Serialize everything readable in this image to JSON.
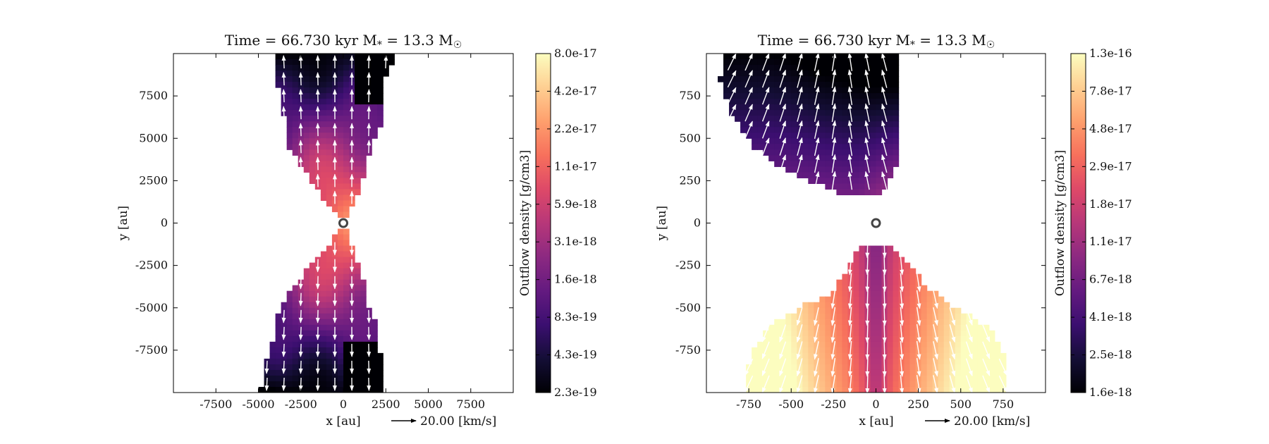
{
  "colors": {
    "colormap": [
      "#000004",
      "#140e36",
      "#3b0f70",
      "#641a80",
      "#8c2981",
      "#b73779",
      "#de4968",
      "#f7705c",
      "#fe9f6d",
      "#fecf92",
      "#fcfdbf"
    ],
    "arrow": "#ffffff",
    "star_marker": "#444444",
    "frame": "#000000"
  },
  "chart_data": [
    {
      "type": "heatmap",
      "title": "Time = 66.730 kyr    M$_*$ = 13.3 M$_\\odot$",
      "title_parts": {
        "time": "Time = 66.730 kyr",
        "mass_prefix": "M",
        "mass_sub": "*",
        "mass_eq": " = 13.3 M",
        "mass_unit_sub": "☉"
      },
      "xlabel": "x [au]",
      "ylabel": "y [au]",
      "xlim": [
        -10000,
        10000
      ],
      "ylim": [
        -10000,
        10000
      ],
      "xticks": [
        -7500,
        -5000,
        -2500,
        0,
        2500,
        5000,
        7500
      ],
      "yticks": [
        -7500,
        -5000,
        -2500,
        0,
        2500,
        5000,
        7500
      ],
      "quiver_key": {
        "label": "20.00 [km/s]"
      },
      "colorbar": {
        "label": "Outflow density [g/cm3]",
        "scale": "log",
        "ticks": [
          "2.3e-19",
          "4.3e-19",
          "8.3e-19",
          "1.6e-18",
          "3.1e-18",
          "5.9e-18",
          "1.1e-17",
          "2.2e-17",
          "4.2e-17",
          "8.0e-17"
        ]
      },
      "star": {
        "x": 0,
        "y": 0
      },
      "lobes": [
        {
          "name": "",
          "outline": [
            [
              0,
              0
            ],
            [
              -800,
              1000
            ],
            [
              -2000,
              2600
            ],
            [
              -3300,
              4700
            ],
            [
              -3400,
              5600
            ],
            [
              -3600,
              7400
            ],
            [
              -4000,
              8300
            ],
            [
              -3900,
              10000
            ],
            [
              3200,
              10000
            ],
            [
              2500,
              8600
            ],
            [
              2500,
              7100
            ],
            [
              2200,
              5800
            ],
            [
              1600,
              4300
            ],
            [
              1300,
              3000
            ],
            [
              600,
              1200
            ]
          ]
        },
        {
          "name": "",
          "outline": [
            [
              0,
              0
            ],
            [
              -800,
              -1200
            ],
            [
              -1700,
              -2300
            ],
            [
              -3100,
              -3900
            ],
            [
              -4000,
              -5600
            ],
            [
              -4200,
              -7100
            ],
            [
              -4700,
              -8800
            ],
            [
              -4900,
              -10000
            ],
            [
              2200,
              -10000
            ],
            [
              2200,
              -8000
            ],
            [
              2000,
              -6200
            ],
            [
              1500,
              -4900
            ],
            [
              1100,
              -3200
            ],
            [
              600,
              -1400
            ]
          ]
        }
      ]
    },
    {
      "type": "heatmap",
      "title": "Time = 66.730 kyr    M$_*$ = 13.3 M$_\\odot$",
      "title_parts": {
        "time": "Time = 66.730 kyr",
        "mass_prefix": "M",
        "mass_sub": "*",
        "mass_eq": " = 13.3 M",
        "mass_unit_sub": "☉"
      },
      "xlabel": "x [au]",
      "ylabel": "y [au]",
      "xlim": [
        -1000,
        1000
      ],
      "ylim": [
        -1000,
        1000
      ],
      "xticks": [
        -750,
        -500,
        -250,
        0,
        250,
        500,
        750
      ],
      "yticks": [
        -750,
        -500,
        -250,
        0,
        250,
        500,
        750
      ],
      "quiver_key": {
        "label": "20.00 [km/s]"
      },
      "colorbar": {
        "label": "Outflow density [g/cm3]",
        "scale": "log",
        "ticks": [
          "1.6e-18",
          "2.5e-18",
          "4.1e-18",
          "6.7e-18",
          "1.1e-17",
          "1.8e-17",
          "2.9e-17",
          "4.8e-17",
          "7.8e-17",
          "1.3e-16"
        ]
      },
      "star": {
        "x": 0,
        "y": 0
      },
      "lobes": [
        {
          "name": "",
          "outline": [
            [
              -900,
              1000
            ],
            [
              -920,
              850
            ],
            [
              -850,
              650
            ],
            [
              -720,
              450
            ],
            [
              -550,
              320
            ],
            [
              -400,
              250
            ],
            [
              -250,
              190
            ],
            [
              -100,
              160
            ],
            [
              40,
              160
            ],
            [
              60,
              210
            ],
            [
              100,
              280
            ],
            [
              130,
              380
            ],
            [
              150,
              560
            ],
            [
              140,
              760
            ],
            [
              135,
              1000
            ]
          ]
        },
        {
          "name": "",
          "outline": [
            [
              -750,
              -1000
            ],
            [
              -760,
              -850
            ],
            [
              -700,
              -700
            ],
            [
              -560,
              -560
            ],
            [
              -400,
              -470
            ],
            [
              -260,
              -420
            ],
            [
              -180,
              -280
            ],
            [
              -70,
              -110
            ],
            [
              10,
              -150
            ],
            [
              80,
              -140
            ],
            [
              200,
              -260
            ],
            [
              310,
              -380
            ],
            [
              420,
              -470
            ],
            [
              580,
              -560
            ],
            [
              700,
              -650
            ],
            [
              760,
              -800
            ],
            [
              770,
              -1000
            ]
          ]
        }
      ]
    }
  ]
}
